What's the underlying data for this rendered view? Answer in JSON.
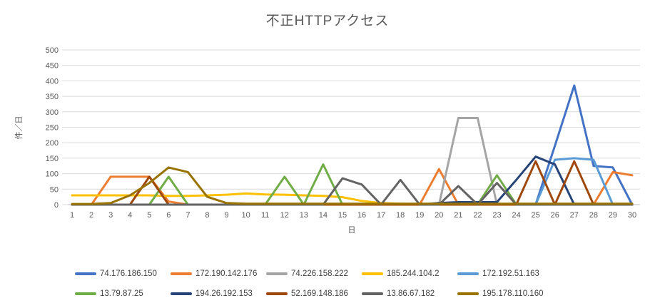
{
  "chart_data": {
    "type": "line",
    "title": "不正HTTPアクセス",
    "xlabel": "日",
    "ylabel": "件／日",
    "x": [
      1,
      2,
      3,
      4,
      5,
      6,
      7,
      8,
      9,
      10,
      11,
      12,
      13,
      14,
      15,
      16,
      17,
      18,
      19,
      20,
      21,
      22,
      23,
      24,
      25,
      26,
      27,
      28,
      29,
      30
    ],
    "ylim": [
      0,
      500
    ],
    "ytick": 50,
    "grid": true,
    "legend_position": "bottom",
    "series": [
      {
        "name": "74.176.186.150",
        "color": "#4472C4",
        "values": [
          0,
          0,
          0,
          0,
          0,
          0,
          0,
          0,
          0,
          0,
          0,
          0,
          0,
          0,
          0,
          0,
          0,
          0,
          0,
          0,
          0,
          0,
          0,
          0,
          0,
          190,
          385,
          125,
          120,
          0
        ]
      },
      {
        "name": "172.190.142.176",
        "color": "#ED7D31",
        "values": [
          0,
          0,
          90,
          90,
          90,
          10,
          0,
          0,
          0,
          0,
          0,
          0,
          0,
          0,
          0,
          0,
          0,
          0,
          0,
          115,
          0,
          0,
          0,
          0,
          0,
          0,
          0,
          0,
          105,
          95
        ]
      },
      {
        "name": "74.226.158.222",
        "color": "#A5A5A5",
        "values": [
          0,
          0,
          0,
          0,
          0,
          0,
          0,
          0,
          0,
          0,
          0,
          0,
          0,
          0,
          0,
          0,
          0,
          0,
          0,
          0,
          280,
          280,
          0,
          0,
          0,
          0,
          0,
          0,
          0,
          0
        ]
      },
      {
        "name": "185.244.104.2",
        "color": "#FFC000",
        "values": [
          30,
          30,
          30,
          30,
          30,
          28,
          28,
          30,
          32,
          36,
          33,
          32,
          30,
          28,
          24,
          12,
          5,
          3,
          2,
          2,
          2,
          2,
          2,
          2,
          2,
          2,
          2,
          2,
          2,
          2
        ]
      },
      {
        "name": "172.192.51.163",
        "color": "#5B9BD5",
        "values": [
          0,
          0,
          0,
          0,
          0,
          0,
          0,
          0,
          0,
          0,
          0,
          0,
          0,
          0,
          0,
          0,
          0,
          0,
          0,
          0,
          0,
          0,
          0,
          0,
          0,
          145,
          150,
          145,
          0,
          0
        ]
      },
      {
        "name": "13.79.87.25",
        "color": "#70AD47",
        "values": [
          0,
          0,
          0,
          0,
          0,
          90,
          0,
          0,
          0,
          0,
          0,
          90,
          0,
          130,
          0,
          0,
          0,
          0,
          0,
          0,
          0,
          0,
          95,
          0,
          0,
          0,
          0,
          0,
          0,
          0
        ]
      },
      {
        "name": "194.26.192.153",
        "color": "#264478",
        "values": [
          0,
          0,
          0,
          0,
          0,
          0,
          0,
          0,
          0,
          0,
          0,
          0,
          0,
          0,
          0,
          0,
          0,
          0,
          0,
          5,
          8,
          8,
          8,
          80,
          155,
          130,
          0,
          0,
          0,
          0
        ]
      },
      {
        "name": "52.169.148.186",
        "color": "#9E480E",
        "values": [
          0,
          0,
          0,
          0,
          90,
          0,
          0,
          0,
          0,
          0,
          0,
          0,
          0,
          0,
          0,
          0,
          0,
          0,
          0,
          0,
          0,
          0,
          0,
          0,
          140,
          0,
          140,
          0,
          0,
          0
        ]
      },
      {
        "name": "13.86.67.182",
        "color": "#636363",
        "values": [
          0,
          0,
          0,
          0,
          0,
          0,
          0,
          0,
          0,
          0,
          0,
          0,
          0,
          0,
          85,
          65,
          0,
          80,
          0,
          0,
          60,
          0,
          70,
          0,
          0,
          0,
          0,
          0,
          0,
          0
        ]
      },
      {
        "name": "195.178.110.160",
        "color": "#997300",
        "values": [
          2,
          2,
          5,
          30,
          70,
          120,
          105,
          25,
          5,
          3,
          3,
          3,
          3,
          3,
          3,
          3,
          3,
          3,
          3,
          3,
          3,
          3,
          3,
          3,
          3,
          3,
          3,
          3,
          3,
          3
        ]
      }
    ]
  },
  "colors": {
    "background": "#FFFFFF",
    "gridline": "#D9D9D9",
    "axis_line": "#BFBFBF",
    "axis_text": "#595959",
    "title_text": "#595959",
    "legend_text": "#404040"
  }
}
